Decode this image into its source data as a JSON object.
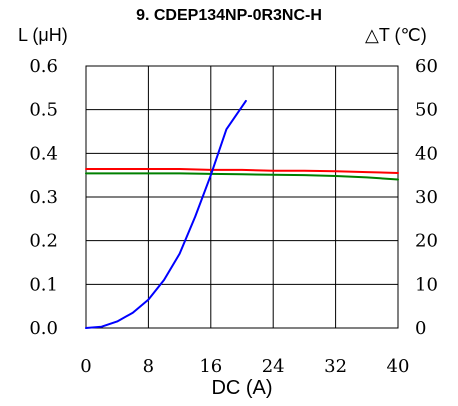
{
  "chart_data": {
    "type": "line",
    "title": "9. CDEP134NP-0R3NC-H",
    "xlabel": "DC (A)",
    "ylabel_left": "L (μH)",
    "ylabel_right": "△T (℃)",
    "xlim": [
      0,
      40
    ],
    "ylim_left": [
      0,
      0.6
    ],
    "ylim_right": [
      0,
      60
    ],
    "x_ticks": [
      "0",
      "8",
      "16",
      "24",
      "32",
      "40"
    ],
    "y_ticks_left": [
      "0.0",
      "0.1",
      "0.2",
      "0.3",
      "0.4",
      "0.5",
      "0.6"
    ],
    "y_ticks_right": [
      "0",
      "10",
      "20",
      "30",
      "40",
      "50",
      "60"
    ],
    "grid": true,
    "colors": {
      "inductance_red": "#ff0000",
      "inductance_green": "#008000",
      "temperature": "#0000ff"
    },
    "series": [
      {
        "axis": "left",
        "color": "#ff0000",
        "x": [
          0,
          4,
          8,
          12,
          16,
          20,
          24,
          28,
          32,
          36,
          40
        ],
        "y": [
          0.364,
          0.364,
          0.364,
          0.364,
          0.362,
          0.362,
          0.36,
          0.36,
          0.359,
          0.357,
          0.355
        ]
      },
      {
        "axis": "left",
        "color": "#008000",
        "x": [
          0,
          4,
          8,
          12,
          16,
          20,
          24,
          28,
          32,
          36,
          40
        ],
        "y": [
          0.354,
          0.354,
          0.354,
          0.354,
          0.353,
          0.352,
          0.351,
          0.35,
          0.348,
          0.345,
          0.34
        ]
      },
      {
        "axis": "right",
        "color": "#0000ff",
        "x": [
          0,
          2,
          4,
          6,
          8,
          10,
          12,
          14,
          16,
          18,
          20.5
        ],
        "y": [
          0,
          0.3,
          1.5,
          3.5,
          6.5,
          11,
          17,
          25.5,
          35,
          45.5,
          52
        ]
      }
    ]
  }
}
